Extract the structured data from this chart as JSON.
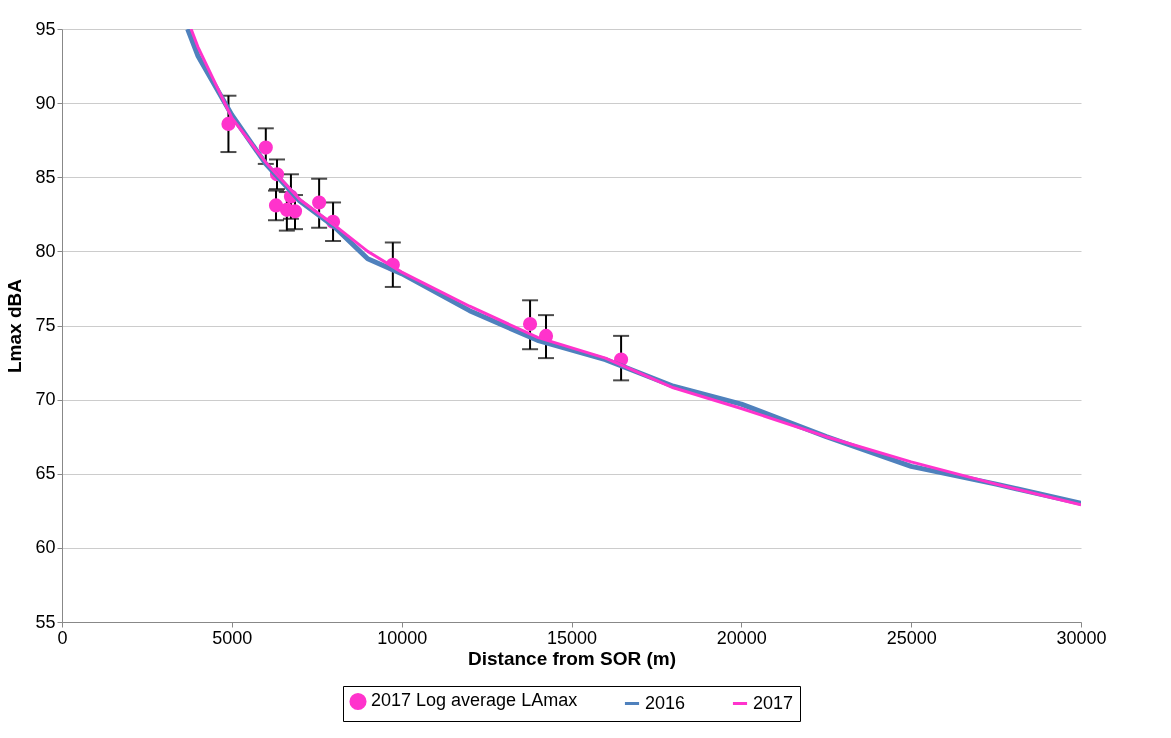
{
  "chart_data": {
    "type": "line",
    "xlabel": "Distance from SOR (m)",
    "ylabel": "Lmax  dBA",
    "xlim": [
      0,
      30000
    ],
    "xticks": [
      0,
      5000,
      10000,
      15000,
      20000,
      25000,
      30000
    ],
    "ylim": [
      55,
      95
    ],
    "yticks": [
      55,
      60,
      65,
      70,
      75,
      80,
      85,
      90,
      95
    ],
    "grid": "y",
    "legend": "bottom",
    "series": [
      {
        "name": "2017 Log average LAmax",
        "type": "scatter",
        "color": "#ff33cc",
        "marker": "circle",
        "x": [
          4900,
          6000,
          6330,
          6300,
          6740,
          6620,
          6860,
          7570,
          7980,
          9740,
          13780,
          14250,
          16460
        ],
        "values": [
          88.6,
          87.0,
          85.2,
          83.1,
          83.7,
          82.8,
          82.7,
          83.3,
          82.0,
          79.1,
          75.1,
          74.3,
          72.7
        ],
        "errors": [
          [
            86.7,
            90.5
          ],
          [
            85.9,
            88.3
          ],
          [
            84.2,
            86.2
          ],
          [
            82.1,
            84.1
          ],
          [
            82.2,
            85.2
          ],
          [
            81.4,
            84.0
          ],
          [
            81.5,
            83.8
          ],
          [
            81.6,
            84.9
          ],
          [
            80.7,
            83.3
          ],
          [
            77.6,
            80.6
          ],
          [
            73.4,
            76.7
          ],
          [
            72.8,
            75.7
          ],
          [
            71.3,
            74.3
          ]
        ]
      },
      {
        "name": "2016",
        "color": "#4f81bd",
        "x": [
          3700,
          4000,
          5000,
          6000,
          7000,
          8000,
          9000,
          10000,
          12000,
          14000,
          16000,
          18000,
          20000,
          22500,
          25000,
          27500,
          30000
        ],
        "values": [
          95,
          93.2,
          89.2,
          85.9,
          83.4,
          81.7,
          79.5,
          78.5,
          76.0,
          74.0,
          72.7,
          70.9,
          69.7,
          67.5,
          65.5,
          64.3,
          63.0
        ]
      },
      {
        "name": "2017",
        "color": "#ff33cc",
        "x": [
          3800,
          4000,
          5000,
          6000,
          7000,
          8000,
          9000,
          10000,
          12000,
          14000,
          16000,
          18000,
          20000,
          22500,
          25000,
          27500,
          30000
        ],
        "values": [
          95,
          93.8,
          89.0,
          86.0,
          83.5,
          81.8,
          80.0,
          78.6,
          76.3,
          74.2,
          72.8,
          70.8,
          69.4,
          67.5,
          65.8,
          64.3,
          62.9
        ]
      }
    ]
  }
}
